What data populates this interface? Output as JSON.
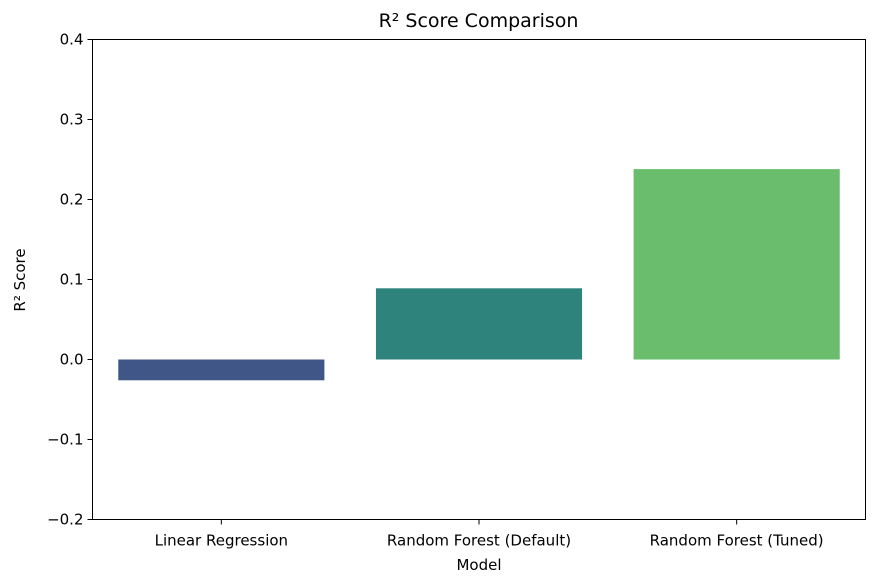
{
  "chart_data": {
    "type": "bar",
    "title": "R² Score Comparison",
    "xlabel": "Model",
    "ylabel": "R² Score",
    "categories": [
      "Linear Regression",
      "Random Forest (Default)",
      "Random Forest (Tuned)"
    ],
    "values": [
      -0.026,
      0.089,
      0.238
    ],
    "colors": [
      "#3f5686",
      "#2e837d",
      "#6abd6d"
    ],
    "ylim": [
      -0.2,
      0.4
    ],
    "yticks": [
      -0.2,
      -0.1,
      0.0,
      0.1,
      0.2,
      0.3,
      0.4
    ],
    "ytick_labels": [
      "−0.2",
      "−0.1",
      "0.0",
      "0.1",
      "0.2",
      "0.3",
      "0.4"
    ],
    "grid": false,
    "legend": "none"
  }
}
